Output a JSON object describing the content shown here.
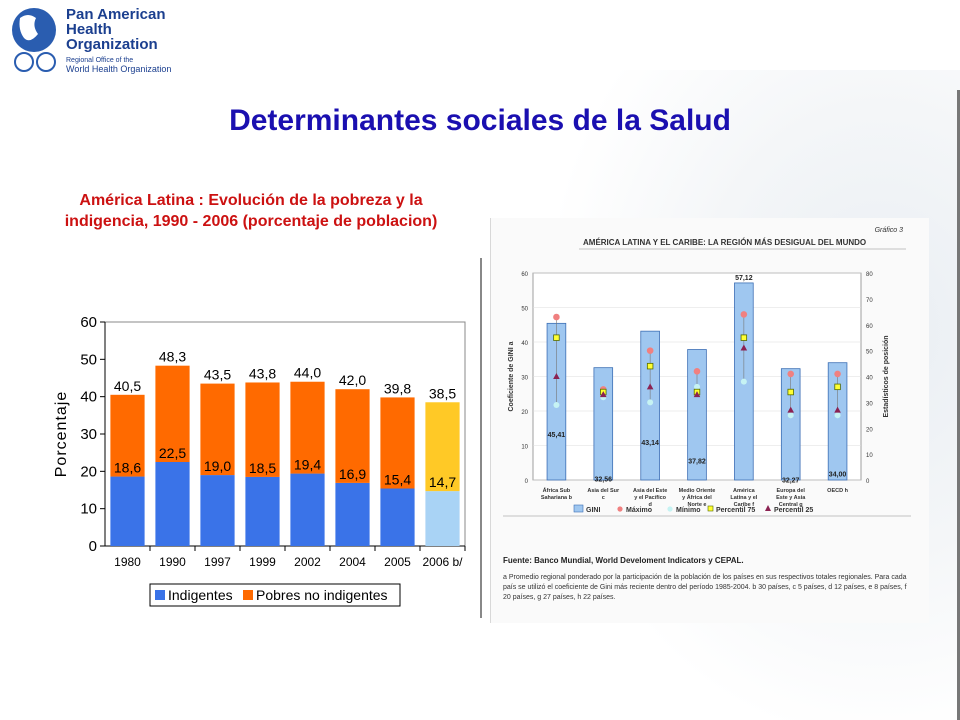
{
  "header": {
    "org_line1": "Pan American",
    "org_line2": "Health",
    "org_line3": "Organization",
    "org_sub1": "Regional Office of the",
    "org_sub2": "World Health Organization"
  },
  "slide": {
    "title": "Determinantes sociales de la Salud",
    "subtitle": "América Latina : Evolución de la pobreza y la indigencia, 1990 - 2006 (porcentaje de poblacion)"
  },
  "colors": {
    "indigentes": "#3a73e8",
    "pobres": "#ff6a00",
    "indigentes_2006": "#a9d3f5",
    "pobres_2006": "#ffc926",
    "title": "#1a0fb0",
    "subtitle": "#cc1111"
  },
  "chart_data": [
    {
      "type": "bar",
      "stacked": true,
      "categories": [
        "1980",
        "1990",
        "1997",
        "1999",
        "2002",
        "2004",
        "2005",
        "2006 b/"
      ],
      "series": [
        {
          "name": "Indigentes",
          "values": [
            18.6,
            22.5,
            19.0,
            18.5,
            19.4,
            16.9,
            15.4,
            14.7
          ]
        },
        {
          "name": "Pobres no indigentes",
          "values": [
            21.9,
            25.8,
            24.5,
            25.3,
            24.6,
            25.1,
            24.4,
            23.8
          ]
        }
      ],
      "total_labels": [
        "40,5",
        "48,3",
        "43,5",
        "43,8",
        "44,0",
        "42,0",
        "39,8",
        "38,5"
      ],
      "indigent_labels": [
        "18,6",
        "22,5",
        "19,0",
        "18,5",
        "19,4",
        "16,9",
        "15,4",
        "14,7"
      ],
      "ylabel": "Porcentaje",
      "yticks": [
        "0",
        "10",
        "20",
        "30",
        "40",
        "50",
        "60"
      ],
      "ylim": [
        0,
        60
      ],
      "grid": false,
      "legend": "bottom"
    },
    {
      "type": "bar",
      "title": "AMÉRICA LATINA Y EL CARIBE: LA REGIÓN MÁS DESIGUAL DEL MUNDO",
      "figure_label": "Gráfico 3",
      "categories": [
        "África Sub Sahariana b",
        "Asia del Sur c",
        "Asia del Este y el Pacífico d",
        "Medio Oriente y África del Norte e",
        "América Latina y el Caribe f",
        "Europa del Este y Asia Central g",
        "OECD h"
      ],
      "gini": [
        45.41,
        32.56,
        43.14,
        37.82,
        57.12,
        32.27,
        34.0
      ],
      "gini_labels": [
        "45,41",
        "32,56",
        "43,14",
        "37,82",
        "57,12",
        "32,27",
        "34,00"
      ],
      "maximo": [
        63,
        35,
        50,
        42,
        64,
        41,
        41
      ],
      "minimo": [
        29,
        32,
        30,
        36,
        38,
        25,
        25
      ],
      "percentil_75": [
        55,
        34,
        44,
        34,
        55,
        34,
        36
      ],
      "percentil_25": [
        40,
        33,
        36,
        33,
        51,
        27,
        27
      ],
      "ylabel": "Coeficiente de GINI a",
      "y2label": "Estadísticos de posición",
      "yticks": [
        "0",
        "10",
        "20",
        "30",
        "40",
        "50",
        "60"
      ],
      "y2ticks": [
        "0",
        "10",
        "20",
        "30",
        "40",
        "50",
        "60",
        "70",
        "80"
      ],
      "ylim": [
        0,
        60
      ],
      "y2lim": [
        0,
        80
      ],
      "legend_items": [
        "GINI",
        "Máximo",
        "Mínimo",
        "Percentil 75",
        "Percentil 25"
      ],
      "source": "Fuente: Banco Mundial, World Develoment Indicators y CEPAL.",
      "note": "a Promedio regional ponderado por la participación de la población de los países en sus respectivos totales regionales. Para cada país se utilizó el coeficiente de Gini más reciente dentro del período 1985-2004. b 30 países, c 5 países, d 12 países, e 8 países, f 20 países, g 27 países, h 22 países."
    }
  ]
}
